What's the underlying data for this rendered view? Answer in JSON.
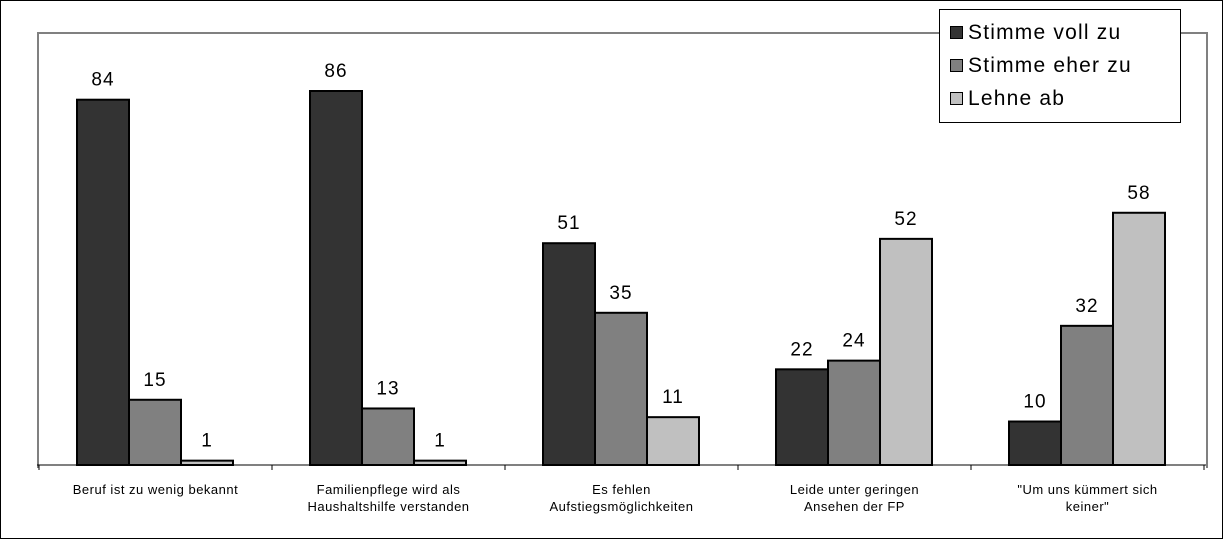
{
  "chart_data": {
    "type": "bar",
    "title": "",
    "xlabel": "",
    "ylabel": "",
    "ylim": [
      0,
      90
    ],
    "grid": false,
    "legend_position": "top-right",
    "categories": [
      [
        "Beruf ist zu wenig bekannt"
      ],
      [
        "Familienpflege wird als",
        "Haushaltshilfe verstanden"
      ],
      [
        "Es fehlen",
        "Aufstiegsmöglichkeiten"
      ],
      [
        "Leide unter geringen",
        "Ansehen der FP"
      ],
      [
        "\"Um uns kümmert sich",
        "keiner\""
      ]
    ],
    "series": [
      {
        "name": "Stimme voll zu",
        "color": "#333333",
        "values": [
          84,
          86,
          51,
          22,
          10
        ]
      },
      {
        "name": "Stimme eher zu",
        "color": "#808080",
        "values": [
          15,
          13,
          35,
          24,
          32
        ]
      },
      {
        "name": "Lehne ab",
        "color": "#c0c0c0",
        "values": [
          1,
          1,
          11,
          52,
          58
        ]
      }
    ]
  }
}
